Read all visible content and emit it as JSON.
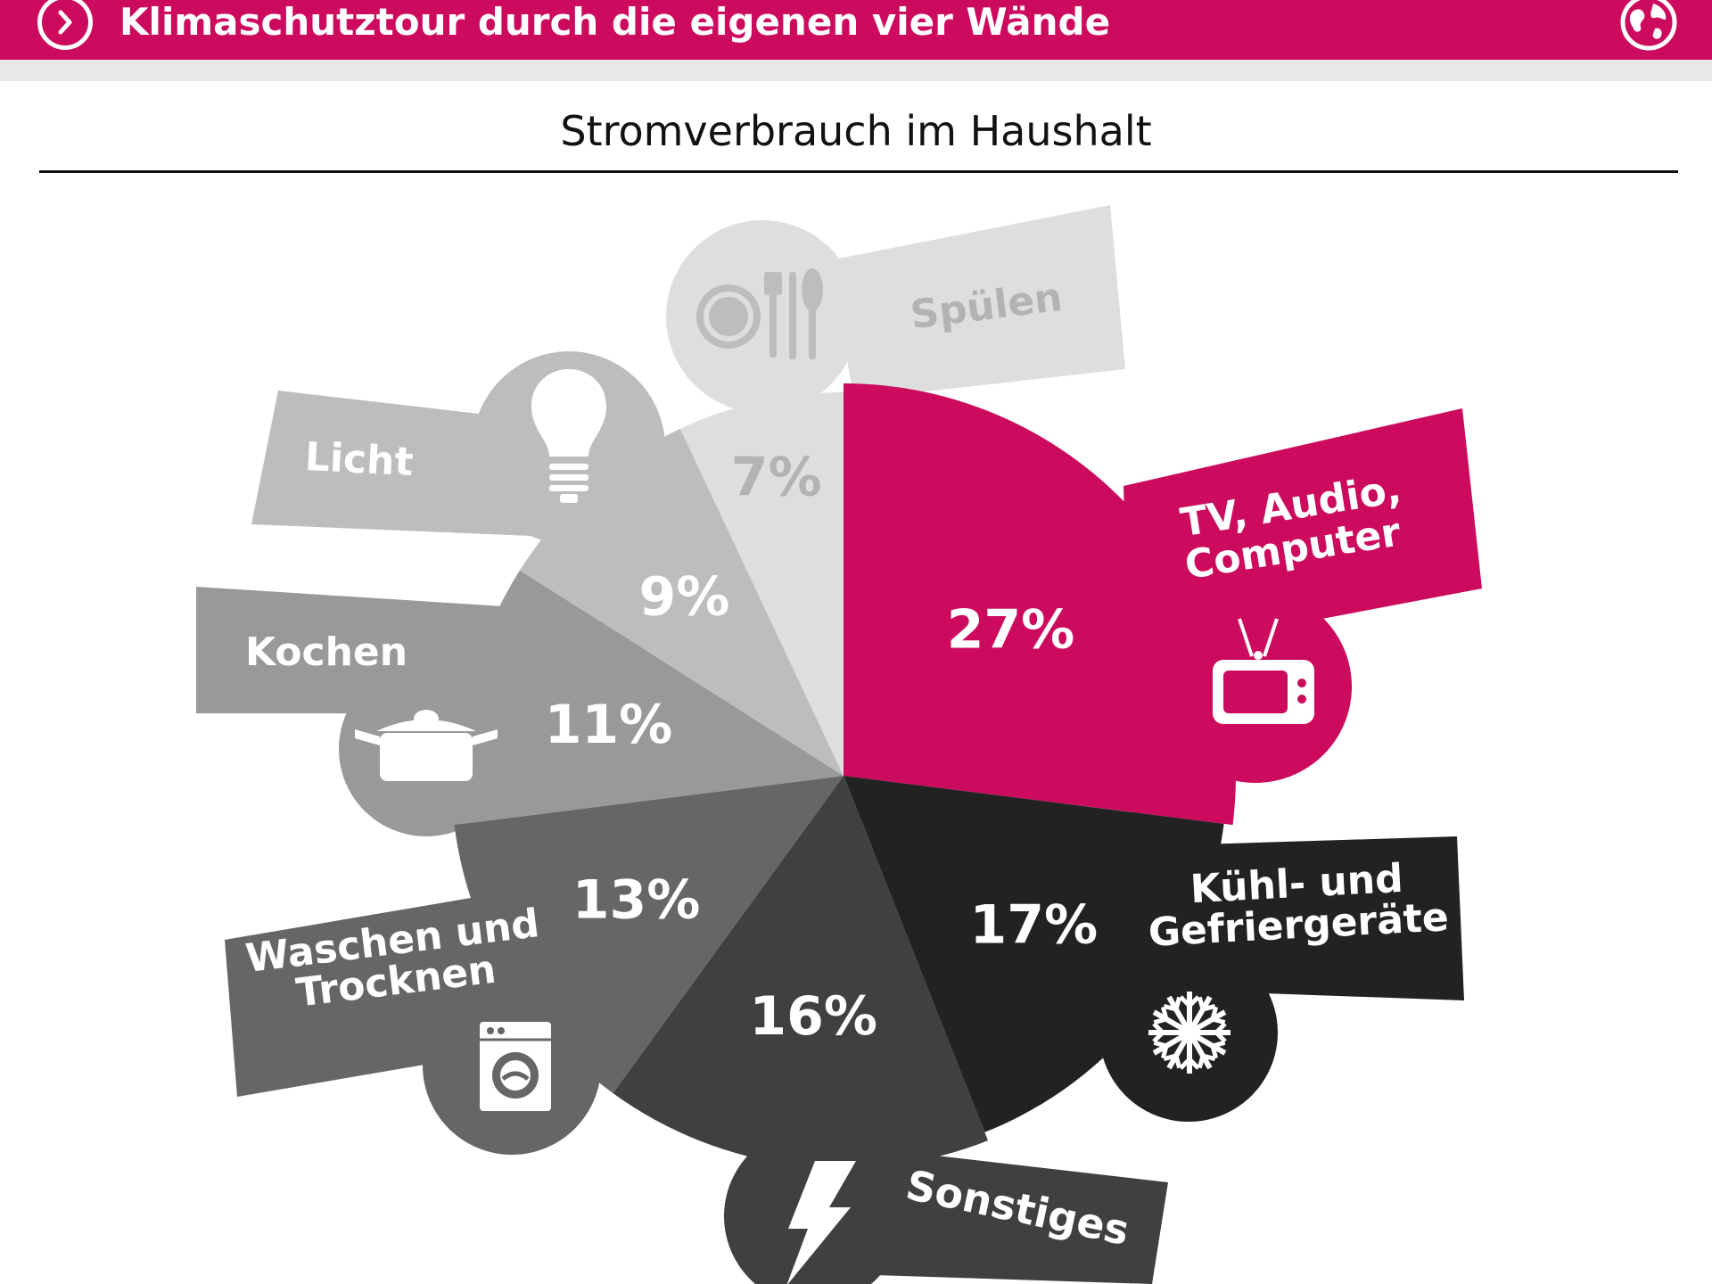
{
  "header": {
    "title": "Klimaschutztour durch die eigenen vier Wände",
    "nav_icon": "chevron-right-circle-icon",
    "globe_icon": "globe-icon"
  },
  "colors": {
    "accent": "#cc0a5e",
    "header_band": "#e9e9e9"
  },
  "chart_data": {
    "type": "pie",
    "title": "Stromverbrauch im Haushalt",
    "start_angle_deg": 0,
    "direction": "clockwise",
    "slices": [
      {
        "label": "TV, Audio, Computer",
        "value": 27,
        "display": "27%",
        "color": "#cc0a5e",
        "label_color": "#ffffff",
        "icon": "tv-icon"
      },
      {
        "label": "Kühl- und Gefriergeräte",
        "value": 17,
        "display": "17%",
        "color": "#222222",
        "label_color": "#ffffff",
        "icon": "snowflake-icon"
      },
      {
        "label": "Sonstiges",
        "value": 16,
        "display": "16%",
        "color": "#404040",
        "label_color": "#ffffff",
        "icon": "lightning-icon"
      },
      {
        "label": "Waschen und Trocknen",
        "value": 13,
        "display": "13%",
        "color": "#666666",
        "label_color": "#ffffff",
        "icon": "washing-machine-icon"
      },
      {
        "label": "Kochen",
        "value": 11,
        "display": "11%",
        "color": "#999999",
        "label_color": "#ffffff",
        "icon": "cooking-pot-icon"
      },
      {
        "label": "Licht",
        "value": 9,
        "display": "9%",
        "color": "#bdbdbd",
        "label_color": "#ffffff",
        "icon": "light-bulb-icon"
      },
      {
        "label": "Spülen",
        "value": 7,
        "display": "7%",
        "color": "#dedede",
        "label_color": "#b3b3b3",
        "icon": "plate-cutlery-icon"
      }
    ]
  }
}
